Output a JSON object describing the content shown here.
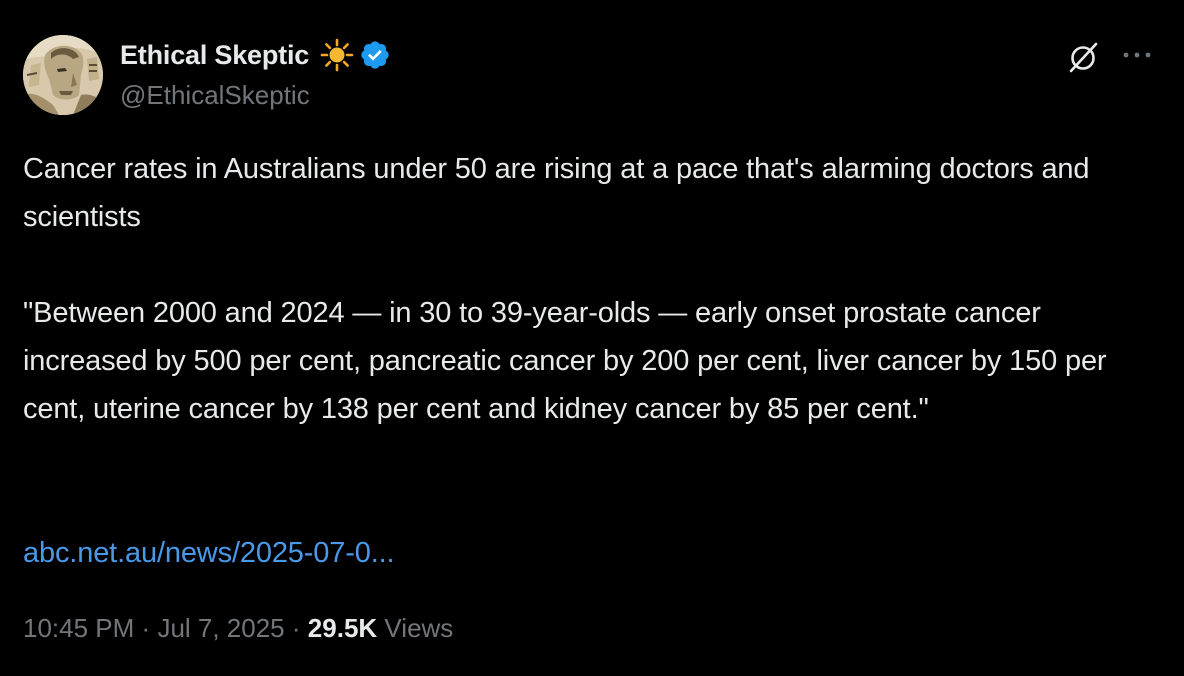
{
  "author": {
    "display_name": "Ethical Skeptic",
    "handle": "@EthicalSkeptic",
    "emoji_icon": "sun-icon",
    "verified_icon": "verified-badge-icon",
    "verified_color": "#1d9bf0"
  },
  "tweet": {
    "text": "Cancer rates in Australians under 50 are rising at a pace that's alarming doctors and scientists\n\n\"Between 2000 and 2024 — in 30 to 39-year-olds — early onset prostate cancer increased by 500 per cent, pancreatic cancer by 200 per cent, liver cancer by 150 per cent, uterine cancer by 138 per cent and kidney cancer by 85 per cent.\"",
    "link_text": "abc.net.au/news/2025-07-0...",
    "link_color": "#4a99e9"
  },
  "meta": {
    "time": "10:45 PM",
    "separator": "·",
    "date": "Jul 7, 2025",
    "views_count": "29.5K",
    "views_label": "Views"
  },
  "actions": {
    "grok_icon": "grok-icon",
    "more_icon": "more-options-icon"
  },
  "colors": {
    "background": "#000000",
    "text_primary": "#e7e9ea",
    "text_secondary": "#71767b"
  }
}
